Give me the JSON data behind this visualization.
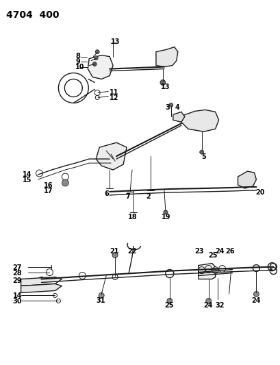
{
  "title": "4704  400",
  "bg_color": "#ffffff",
  "line_color": "#1a1a1a",
  "text_color": "#000000",
  "title_fontsize": 10,
  "label_fontsize": 7,
  "fig_width": 4.09,
  "fig_height": 5.33,
  "dpi": 100
}
